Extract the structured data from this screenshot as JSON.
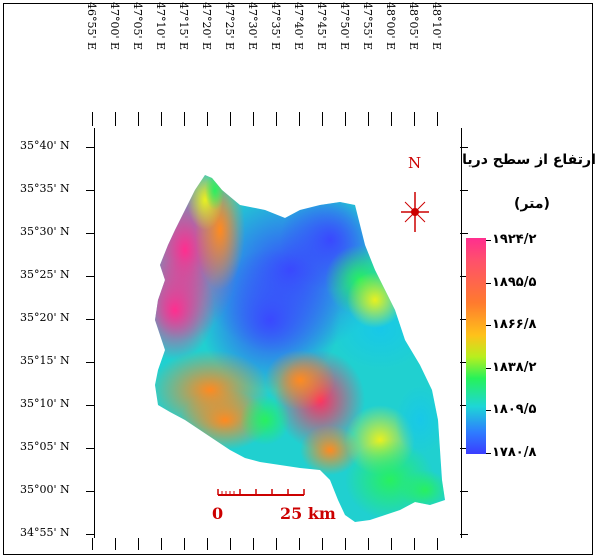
{
  "map": {
    "longitude_labels": [
      "46°55' E",
      "47°00' E",
      "47°05' E",
      "47°10' E",
      "47°15' E",
      "47°20' E",
      "47°25' E",
      "47°30' E",
      "47°35' E",
      "47°40' E",
      "47°45' E",
      "47°50' E",
      "47°55' E",
      "48°00' E",
      "48°05' E",
      "48°10' E"
    ],
    "latitude_labels": [
      "35°40' N",
      "35°35' N",
      "35°30' N",
      "35°25' N",
      "35°20' N",
      "35°15' N",
      "35°10' N",
      "35°05' N",
      "35°00' N",
      "34°55' N"
    ],
    "north_label": "N",
    "scale": {
      "start": "0",
      "end": "25 km"
    }
  },
  "legend": {
    "title_line1": "ارتفاع از سطح دریا",
    "title_line2": "(متر)",
    "values": [
      "۱۹۲۴/۲",
      "۱۸۹۵/۵",
      "۱۸۶۶/۸",
      "۱۸۳۸/۲",
      "۱۸۰۹/۵",
      "۱۷۸۰/۸"
    ],
    "colors": [
      "#ff2e8f",
      "#ff7a2e",
      "#ffc21a",
      "#26f25a",
      "#1ed6d6",
      "#3a3dff"
    ]
  }
}
